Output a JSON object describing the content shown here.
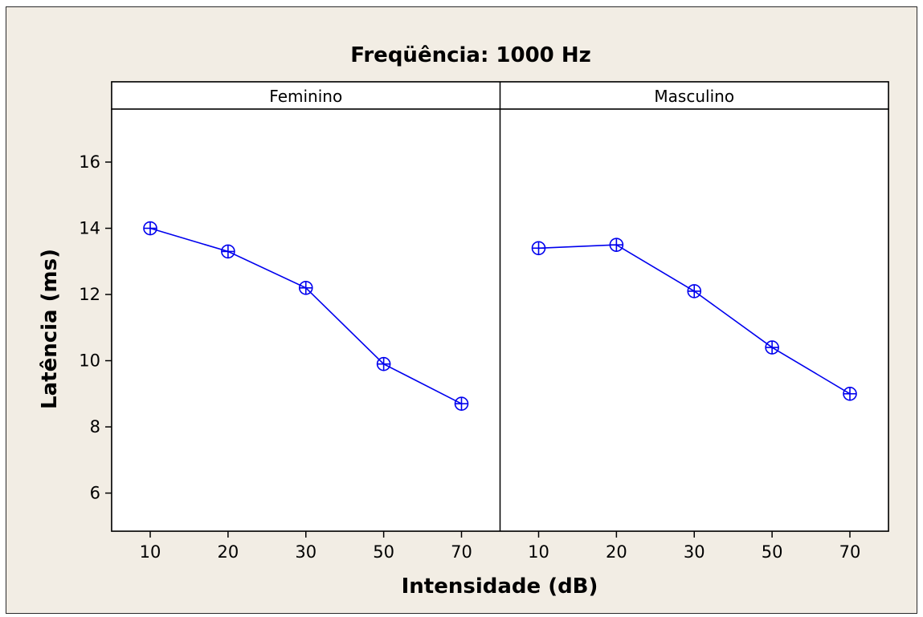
{
  "chart_data": {
    "type": "line",
    "title": "Freqüência: 1000 Hz",
    "xlabel": "Intensidade (dB)",
    "ylabel": "Latência (ms)",
    "categories": [
      "10",
      "20",
      "30",
      "50",
      "70"
    ],
    "ylim": [
      4.85,
      17.6
    ],
    "yticks": [
      6,
      8,
      10,
      12,
      14,
      16
    ],
    "grid": false,
    "legend": "none",
    "marker": "circle-plus",
    "line_color": "#0000ee",
    "panels": [
      {
        "name": "Feminino",
        "values": [
          14.0,
          13.3,
          12.2,
          9.9,
          8.7
        ]
      },
      {
        "name": "Masculino",
        "values": [
          13.4,
          13.5,
          12.1,
          10.4,
          9.0
        ]
      }
    ]
  }
}
